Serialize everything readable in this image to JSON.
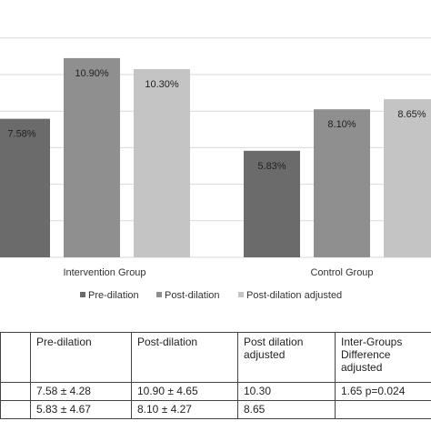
{
  "chart_data": {
    "type": "bar",
    "categories": [
      "Intervention Group",
      "Control Group"
    ],
    "series": [
      {
        "name": "Pre-dilation",
        "values": [
          7.58,
          5.83
        ],
        "labels": [
          "7.58%",
          "5.83%"
        ],
        "color": "#6b6b6b"
      },
      {
        "name": "Post-dilation",
        "values": [
          10.9,
          8.1
        ],
        "labels": [
          "10.90%",
          "8.10%"
        ],
        "color": "#8f8f8f"
      },
      {
        "name": "Post-dilation adjusted",
        "values": [
          10.3,
          8.65
        ],
        "labels": [
          "10.30%",
          "8.65%"
        ],
        "color": "#c4c4c4"
      }
    ],
    "ylim": [
      0,
      12
    ],
    "gridlines": true,
    "legend_position": "bottom"
  },
  "table": {
    "headers": [
      "",
      "Pre-dilation",
      "Post-dilation",
      "Post dilation adjusted",
      "Inter-Groups Difference adjusted"
    ],
    "rows": [
      [
        "",
        "7.58 ± 4.28",
        "10.90 ± 4.65",
        "10.30",
        "1.65 p=0.024"
      ],
      [
        "",
        "5.83 ± 4.67",
        "8.10 ± 4.27",
        "8.65",
        ""
      ]
    ]
  }
}
